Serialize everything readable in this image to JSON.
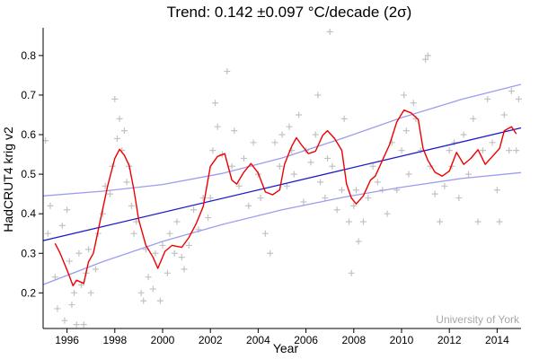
{
  "chart_data": {
    "type": "line",
    "title": "Trend: 0.142 ±0.097 °C/decade (2σ)",
    "xlabel": "Year",
    "ylabel": "HadCRUT4 krig v2",
    "credit": "University of York",
    "xlim": [
      1995.0,
      2015.0
    ],
    "ylim": [
      0.11,
      0.87
    ],
    "x_ticks": [
      1996,
      1998,
      2000,
      2002,
      2004,
      2006,
      2008,
      2010,
      2012,
      2014
    ],
    "x_tick_labels": [
      "1996",
      "1998",
      "2000",
      "2002",
      "2004",
      "2006",
      "2008",
      "2010",
      "2012",
      "2014"
    ],
    "y_ticks": [
      0.2,
      0.3,
      0.4,
      0.5,
      0.6,
      0.7,
      0.8
    ],
    "y_tick_labels": [
      "0.2",
      "0.3",
      "0.4",
      "0.5",
      "0.6",
      "0.7",
      "0.8"
    ],
    "grid": false,
    "colors": {
      "monthly": "#c2c2c2",
      "smoothed": "#ee0000",
      "trend": "#1a1acc",
      "confidence": "#9c9cf0",
      "credit": "#a8a8a8"
    },
    "series": [
      {
        "kind": "trend",
        "x": [
          1995.0,
          2015.0
        ],
        "y": [
          0.332,
          0.617
        ]
      },
      {
        "kind": "confidence-band",
        "x": [
          1995.0,
          1997.5,
          2000.0,
          2002.5,
          2005.0,
          2007.5,
          2010.0,
          2012.5,
          2015.0
        ],
        "upper": [
          0.445,
          0.457,
          0.474,
          0.502,
          0.541,
          0.59,
          0.643,
          0.689,
          0.727
        ],
        "lower": [
          0.221,
          0.279,
          0.33,
          0.373,
          0.41,
          0.441,
          0.467,
          0.489,
          0.504
        ]
      },
      {
        "kind": "smoothed",
        "x": [
          1995.5,
          1995.7,
          1996.0,
          1996.25,
          1996.4,
          1996.7,
          1996.9,
          1997.1,
          1997.4,
          1997.7,
          1998.0,
          1998.2,
          1998.4,
          1998.6,
          1998.8,
          1999.0,
          1999.3,
          1999.6,
          1999.8,
          2000.1,
          2000.4,
          2000.8,
          2001.1,
          2001.4,
          2001.7,
          2002.0,
          2002.3,
          2002.6,
          2002.9,
          2003.1,
          2003.4,
          2003.7,
          2004.0,
          2004.3,
          2004.6,
          2004.9,
          2005.1,
          2005.4,
          2005.6,
          2005.8,
          2006.1,
          2006.4,
          2006.7,
          2006.9,
          2007.2,
          2007.5,
          2007.7,
          2007.9,
          2008.1,
          2008.4,
          2008.7,
          2008.9,
          2009.2,
          2009.5,
          2009.8,
          2010.1,
          2010.4,
          2010.7,
          2010.9,
          2011.1,
          2011.4,
          2011.7,
          2012.0,
          2012.3,
          2012.6,
          2012.9,
          2013.2,
          2013.5,
          2013.8,
          2014.1,
          2014.3,
          2014.6,
          2014.8
        ],
        "y": [
          0.325,
          0.302,
          0.258,
          0.218,
          0.232,
          0.224,
          0.278,
          0.3,
          0.385,
          0.47,
          0.54,
          0.563,
          0.548,
          0.522,
          0.46,
          0.385,
          0.32,
          0.29,
          0.262,
          0.305,
          0.32,
          0.315,
          0.34,
          0.374,
          0.418,
          0.52,
          0.545,
          0.552,
          0.485,
          0.475,
          0.505,
          0.527,
          0.503,
          0.455,
          0.448,
          0.46,
          0.525,
          0.57,
          0.592,
          0.575,
          0.552,
          0.558,
          0.598,
          0.61,
          0.59,
          0.56,
          0.475,
          0.44,
          0.425,
          0.445,
          0.485,
          0.495,
          0.535,
          0.575,
          0.632,
          0.662,
          0.655,
          0.638,
          0.565,
          0.535,
          0.505,
          0.495,
          0.508,
          0.555,
          0.525,
          0.54,
          0.562,
          0.525,
          0.545,
          0.565,
          0.61,
          0.62,
          0.602
        ]
      },
      {
        "kind": "monthly",
        "x": [
          1995.1,
          1995.2,
          1995.3,
          1995.5,
          1995.6,
          1995.8,
          1995.9,
          1996.0,
          1996.1,
          1996.2,
          1996.3,
          1996.4,
          1996.5,
          1996.6,
          1996.7,
          1996.8,
          1996.9,
          1997.0,
          1997.2,
          1997.3,
          1997.5,
          1997.6,
          1997.8,
          1997.9,
          1998.0,
          1998.1,
          1998.2,
          1998.3,
          1998.4,
          1998.5,
          1998.6,
          1998.7,
          1998.8,
          1998.9,
          1999.1,
          1999.2,
          1999.3,
          1999.4,
          1999.6,
          1999.7,
          1999.9,
          2000.0,
          2000.2,
          2000.3,
          2000.5,
          2000.6,
          2000.8,
          2000.9,
          2001.1,
          2001.3,
          2001.5,
          2001.7,
          2001.9,
          2002.0,
          2002.1,
          2002.2,
          2002.3,
          2002.5,
          2002.7,
          2002.9,
          2003.0,
          2003.2,
          2003.4,
          2003.6,
          2003.8,
          2004.0,
          2004.1,
          2004.3,
          2004.5,
          2004.7,
          2004.9,
          2005.0,
          2005.2,
          2005.3,
          2005.4,
          2005.5,
          2005.7,
          2005.9,
          2006.0,
          2006.2,
          2006.4,
          2006.5,
          2006.6,
          2006.8,
          2006.9,
          2007.0,
          2007.1,
          2007.3,
          2007.5,
          2007.6,
          2007.8,
          2007.9,
          2008.0,
          2008.1,
          2008.2,
          2008.4,
          2008.6,
          2008.8,
          2009.0,
          2009.2,
          2009.4,
          2009.6,
          2009.8,
          2010.0,
          2010.1,
          2010.2,
          2010.3,
          2010.5,
          2010.6,
          2010.8,
          2011.0,
          2011.1,
          2011.2,
          2011.4,
          2011.6,
          2011.8,
          2012.0,
          2012.1,
          2012.2,
          2012.4,
          2012.6,
          2012.8,
          2013.0,
          2013.2,
          2013.4,
          2013.6,
          2013.8,
          2014.0,
          2014.1,
          2014.3,
          2014.5,
          2014.6,
          2014.8,
          2014.9
        ],
        "y": [
          0.585,
          0.35,
          0.42,
          0.24,
          0.16,
          0.37,
          0.13,
          0.41,
          0.28,
          0.17,
          0.2,
          0.12,
          0.3,
          0.22,
          0.12,
          0.25,
          0.31,
          0.2,
          0.26,
          0.35,
          0.4,
          0.47,
          0.45,
          0.52,
          0.69,
          0.59,
          0.64,
          0.56,
          0.61,
          0.48,
          0.52,
          0.42,
          0.35,
          0.38,
          0.2,
          0.18,
          0.31,
          0.24,
          0.21,
          0.3,
          0.18,
          0.32,
          0.25,
          0.35,
          0.3,
          0.38,
          0.29,
          0.26,
          0.32,
          0.41,
          0.36,
          0.44,
          0.39,
          0.44,
          0.56,
          0.68,
          0.62,
          0.55,
          0.76,
          0.52,
          0.61,
          0.47,
          0.54,
          0.42,
          0.58,
          0.5,
          0.44,
          0.35,
          0.3,
          0.58,
          0.52,
          0.6,
          0.47,
          0.62,
          0.56,
          0.5,
          0.65,
          0.43,
          0.56,
          0.53,
          0.6,
          0.7,
          0.48,
          0.44,
          0.54,
          0.86,
          0.52,
          0.41,
          0.46,
          0.64,
          0.38,
          0.25,
          0.42,
          0.46,
          0.33,
          0.38,
          0.44,
          0.52,
          0.48,
          0.46,
          0.4,
          0.58,
          0.46,
          0.56,
          0.7,
          0.61,
          0.5,
          0.68,
          0.64,
          0.56,
          0.79,
          0.8,
          0.52,
          0.45,
          0.38,
          0.47,
          0.56,
          0.52,
          0.58,
          0.44,
          0.6,
          0.5,
          0.64,
          0.38,
          0.56,
          0.69,
          0.58,
          0.46,
          0.38,
          0.65,
          0.56,
          0.71,
          0.56,
          0.69
        ]
      }
    ]
  }
}
